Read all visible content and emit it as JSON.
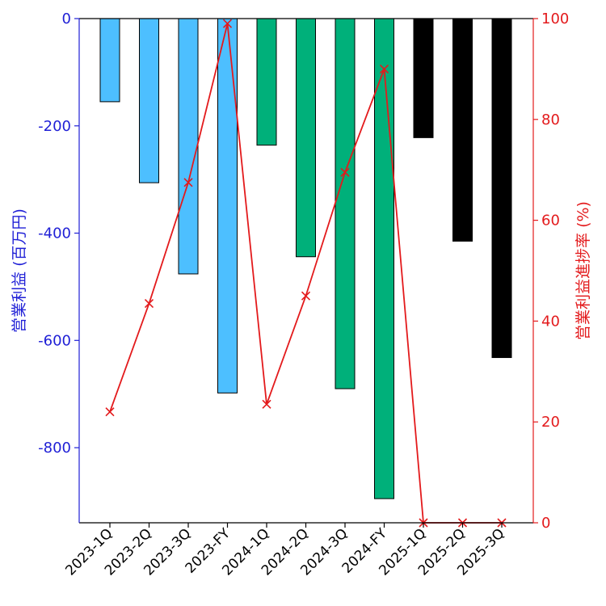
{
  "chart_data": {
    "type": "bar",
    "categories": [
      "2023-1Q",
      "2023-2Q",
      "2023-3Q",
      "2023-FY",
      "2024-1Q",
      "2024-2Q",
      "2024-3Q",
      "2024-FY",
      "2025-1Q",
      "2025-2Q",
      "2025-3Q"
    ],
    "series": [
      {
        "type": "bar",
        "axis": "left",
        "values": [
          -155,
          -306,
          -476,
          -698,
          -236,
          -444,
          -690,
          -895,
          -222,
          -415,
          -632
        ],
        "colors": [
          "#4dbfff",
          "#4dbfff",
          "#4dbfff",
          "#4dbfff",
          "#00b07a",
          "#00b07a",
          "#00b07a",
          "#00b07a",
          "#000000",
          "#000000",
          "#000000"
        ]
      },
      {
        "type": "line",
        "axis": "right",
        "values": [
          22,
          43.5,
          67.5,
          99,
          23.5,
          45,
          69.5,
          90,
          0,
          0,
          0
        ],
        "color": "#e31a1c",
        "marker": "x"
      }
    ],
    "ylabel": "営業利益 (百万円)",
    "ylabel_right": "営業利益進捗率 (%)",
    "ylim": [
      -940,
      0
    ],
    "ylim_right": [
      0,
      100
    ],
    "yticks": [
      0,
      -200,
      -400,
      -600,
      -800
    ],
    "yticks_right": [
      0,
      20,
      40,
      60,
      80,
      100
    ],
    "left_axis_color": "#1f1fd6",
    "right_axis_color": "#e31a1c",
    "grid": false,
    "legend": "none"
  }
}
